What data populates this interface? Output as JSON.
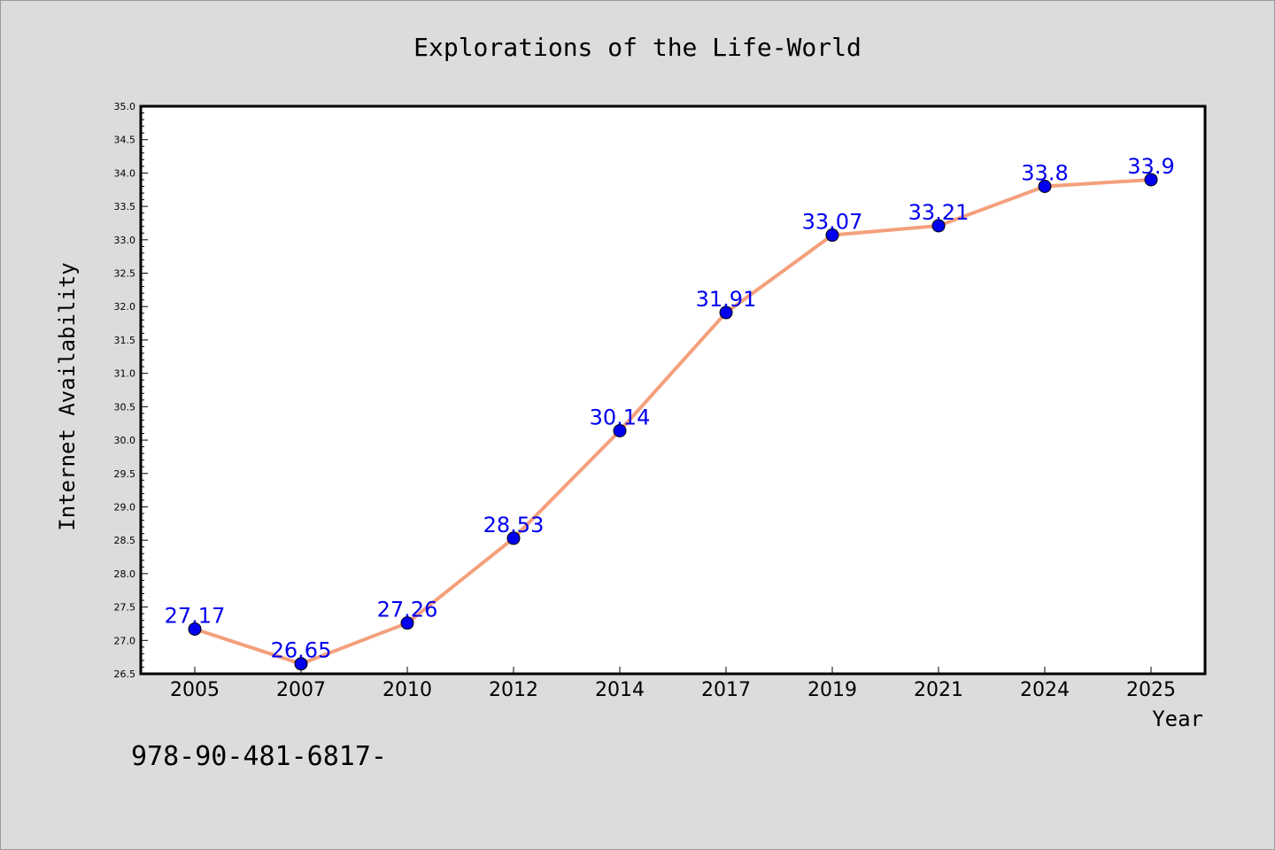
{
  "chart_data": {
    "type": "line",
    "title": "Explorations of the Life-World",
    "xlabel": "Year",
    "ylabel": "Internet Availability",
    "categories": [
      "2005",
      "2007",
      "2010",
      "2012",
      "2014",
      "2017",
      "2019",
      "2021",
      "2024",
      "2025"
    ],
    "series": [
      {
        "values": [
          27.17,
          26.65,
          27.26,
          28.53,
          30.14,
          31.91,
          33.07,
          33.21,
          33.8,
          33.9
        ],
        "data_labels": [
          "27.17",
          "26.65",
          "27.26",
          "28.53",
          "30.14",
          "31.91",
          "33.07",
          "33.21",
          "33.8",
          "33.9"
        ],
        "line_color": "#f4a07c",
        "marker_color": "#0000ee"
      }
    ],
    "ylim": [
      26.5,
      35.0
    ],
    "yticks": [
      "26.5",
      "27.0",
      "27.5",
      "28.0",
      "28.5",
      "29.0",
      "29.5",
      "30.0",
      "30.5",
      "31.0",
      "31.5",
      "32.0",
      "32.5",
      "33.0",
      "33.5",
      "34.0",
      "34.5",
      "35.0"
    ],
    "grid": false,
    "legend": "none"
  },
  "footer_text": "978-90-481-6817-",
  "colors": {
    "background": "#dcdcdc",
    "plot_background": "#ffffff",
    "line": "#f4a07c",
    "marker": "#0000ee",
    "data_label": "#0000ee"
  }
}
